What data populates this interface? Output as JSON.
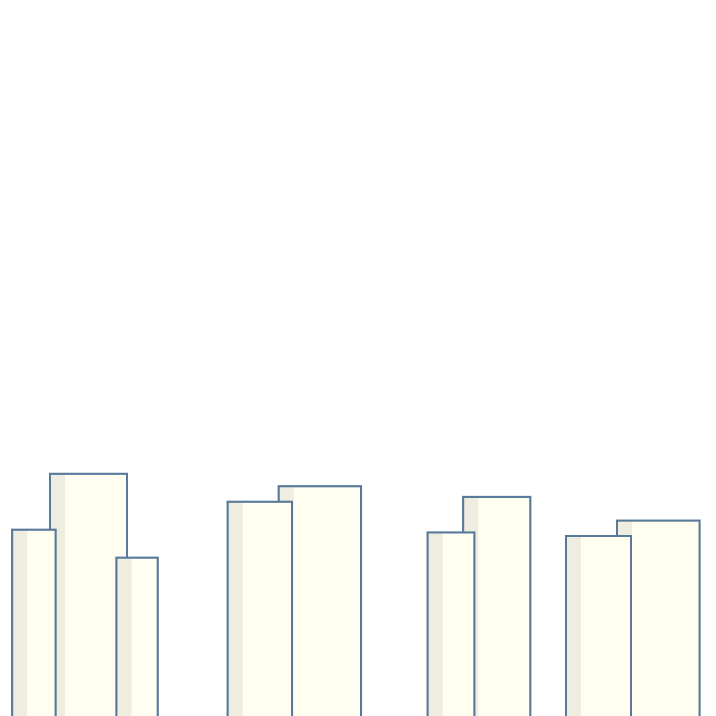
{
  "scene": {
    "background_color": "#ffffff",
    "building_fill": "#fffef0",
    "building_shade": "#efede0",
    "building_outline": "#587a9a",
    "building_count": 9
  }
}
